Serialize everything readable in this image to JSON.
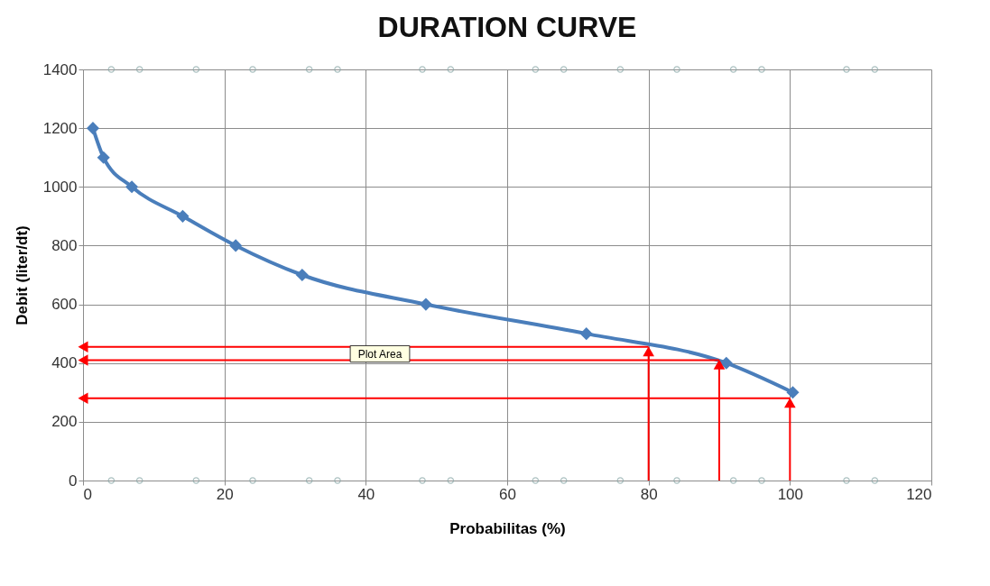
{
  "chart_data": {
    "type": "line",
    "title": "DURATION CURVE",
    "xlabel": "Probabilitas  (%)",
    "ylabel": "Debit (liter/dt)",
    "xlim": [
      0,
      120
    ],
    "xticks": [
      0,
      20,
      40,
      60,
      80,
      100,
      120
    ],
    "ylim": [
      0,
      1400
    ],
    "yticks": [
      0,
      200,
      400,
      600,
      800,
      1000,
      1200,
      1400
    ],
    "grid": true,
    "annotations": [
      "Plot Area"
    ],
    "series": [
      {
        "type": "line",
        "color": "#4a7ebb",
        "marker": "diamond",
        "line_style": "solid",
        "x": [
          1.4,
          2.9,
          6.9,
          14.1,
          21.6,
          31,
          48.5,
          71.2,
          91,
          100.4
        ],
        "values": [
          1200,
          1100,
          1000,
          900,
          800,
          700,
          600,
          500,
          400,
          300
        ]
      },
      {
        "type": "line",
        "color": "#ff0000",
        "marker": "triangle",
        "x": [
          80,
          0
        ],
        "values": [
          455,
          455
        ]
      },
      {
        "type": "line",
        "color": "#ff0000",
        "marker": "triangle",
        "x": [
          90,
          0
        ],
        "values": [
          410,
          410
        ]
      },
      {
        "type": "line",
        "color": "#ff0000",
        "marker": "triangle",
        "x": [
          100,
          0
        ],
        "values": [
          280,
          280
        ]
      },
      {
        "type": "line",
        "color": "#ff0000",
        "marker": "triangle",
        "x": [
          80,
          80
        ],
        "values": [
          0,
          440
        ]
      },
      {
        "type": "line",
        "color": "#ff0000",
        "marker": "triangle",
        "x": [
          90,
          90
        ],
        "values": [
          0,
          395
        ]
      },
      {
        "type": "line",
        "color": "#ff0000",
        "marker": "triangle",
        "x": [
          100,
          100
        ],
        "values": [
          0,
          265
        ]
      },
      {
        "type": "scatter",
        "color": "#8aa8a8",
        "marker": "circle",
        "x": [
          4,
          8,
          16,
          24,
          32,
          36,
          48,
          52,
          64,
          68,
          76,
          84,
          92,
          96,
          108,
          112
        ],
        "values": [
          0,
          0,
          0,
          0,
          0,
          0,
          0,
          0,
          0,
          0,
          0,
          0,
          0,
          0,
          0,
          0
        ]
      },
      {
        "type": "scatter",
        "color": "#8aa8a8",
        "marker": "circle",
        "x": [
          4,
          8,
          16,
          24,
          32,
          36,
          48,
          52,
          64,
          68,
          76,
          84,
          92,
          96,
          108,
          112
        ],
        "values": [
          1400,
          1400,
          1400,
          1400,
          1400,
          1400,
          1400,
          1400,
          1400,
          1400,
          1400,
          1400,
          1400,
          1400,
          1400,
          1400
        ]
      }
    ]
  }
}
